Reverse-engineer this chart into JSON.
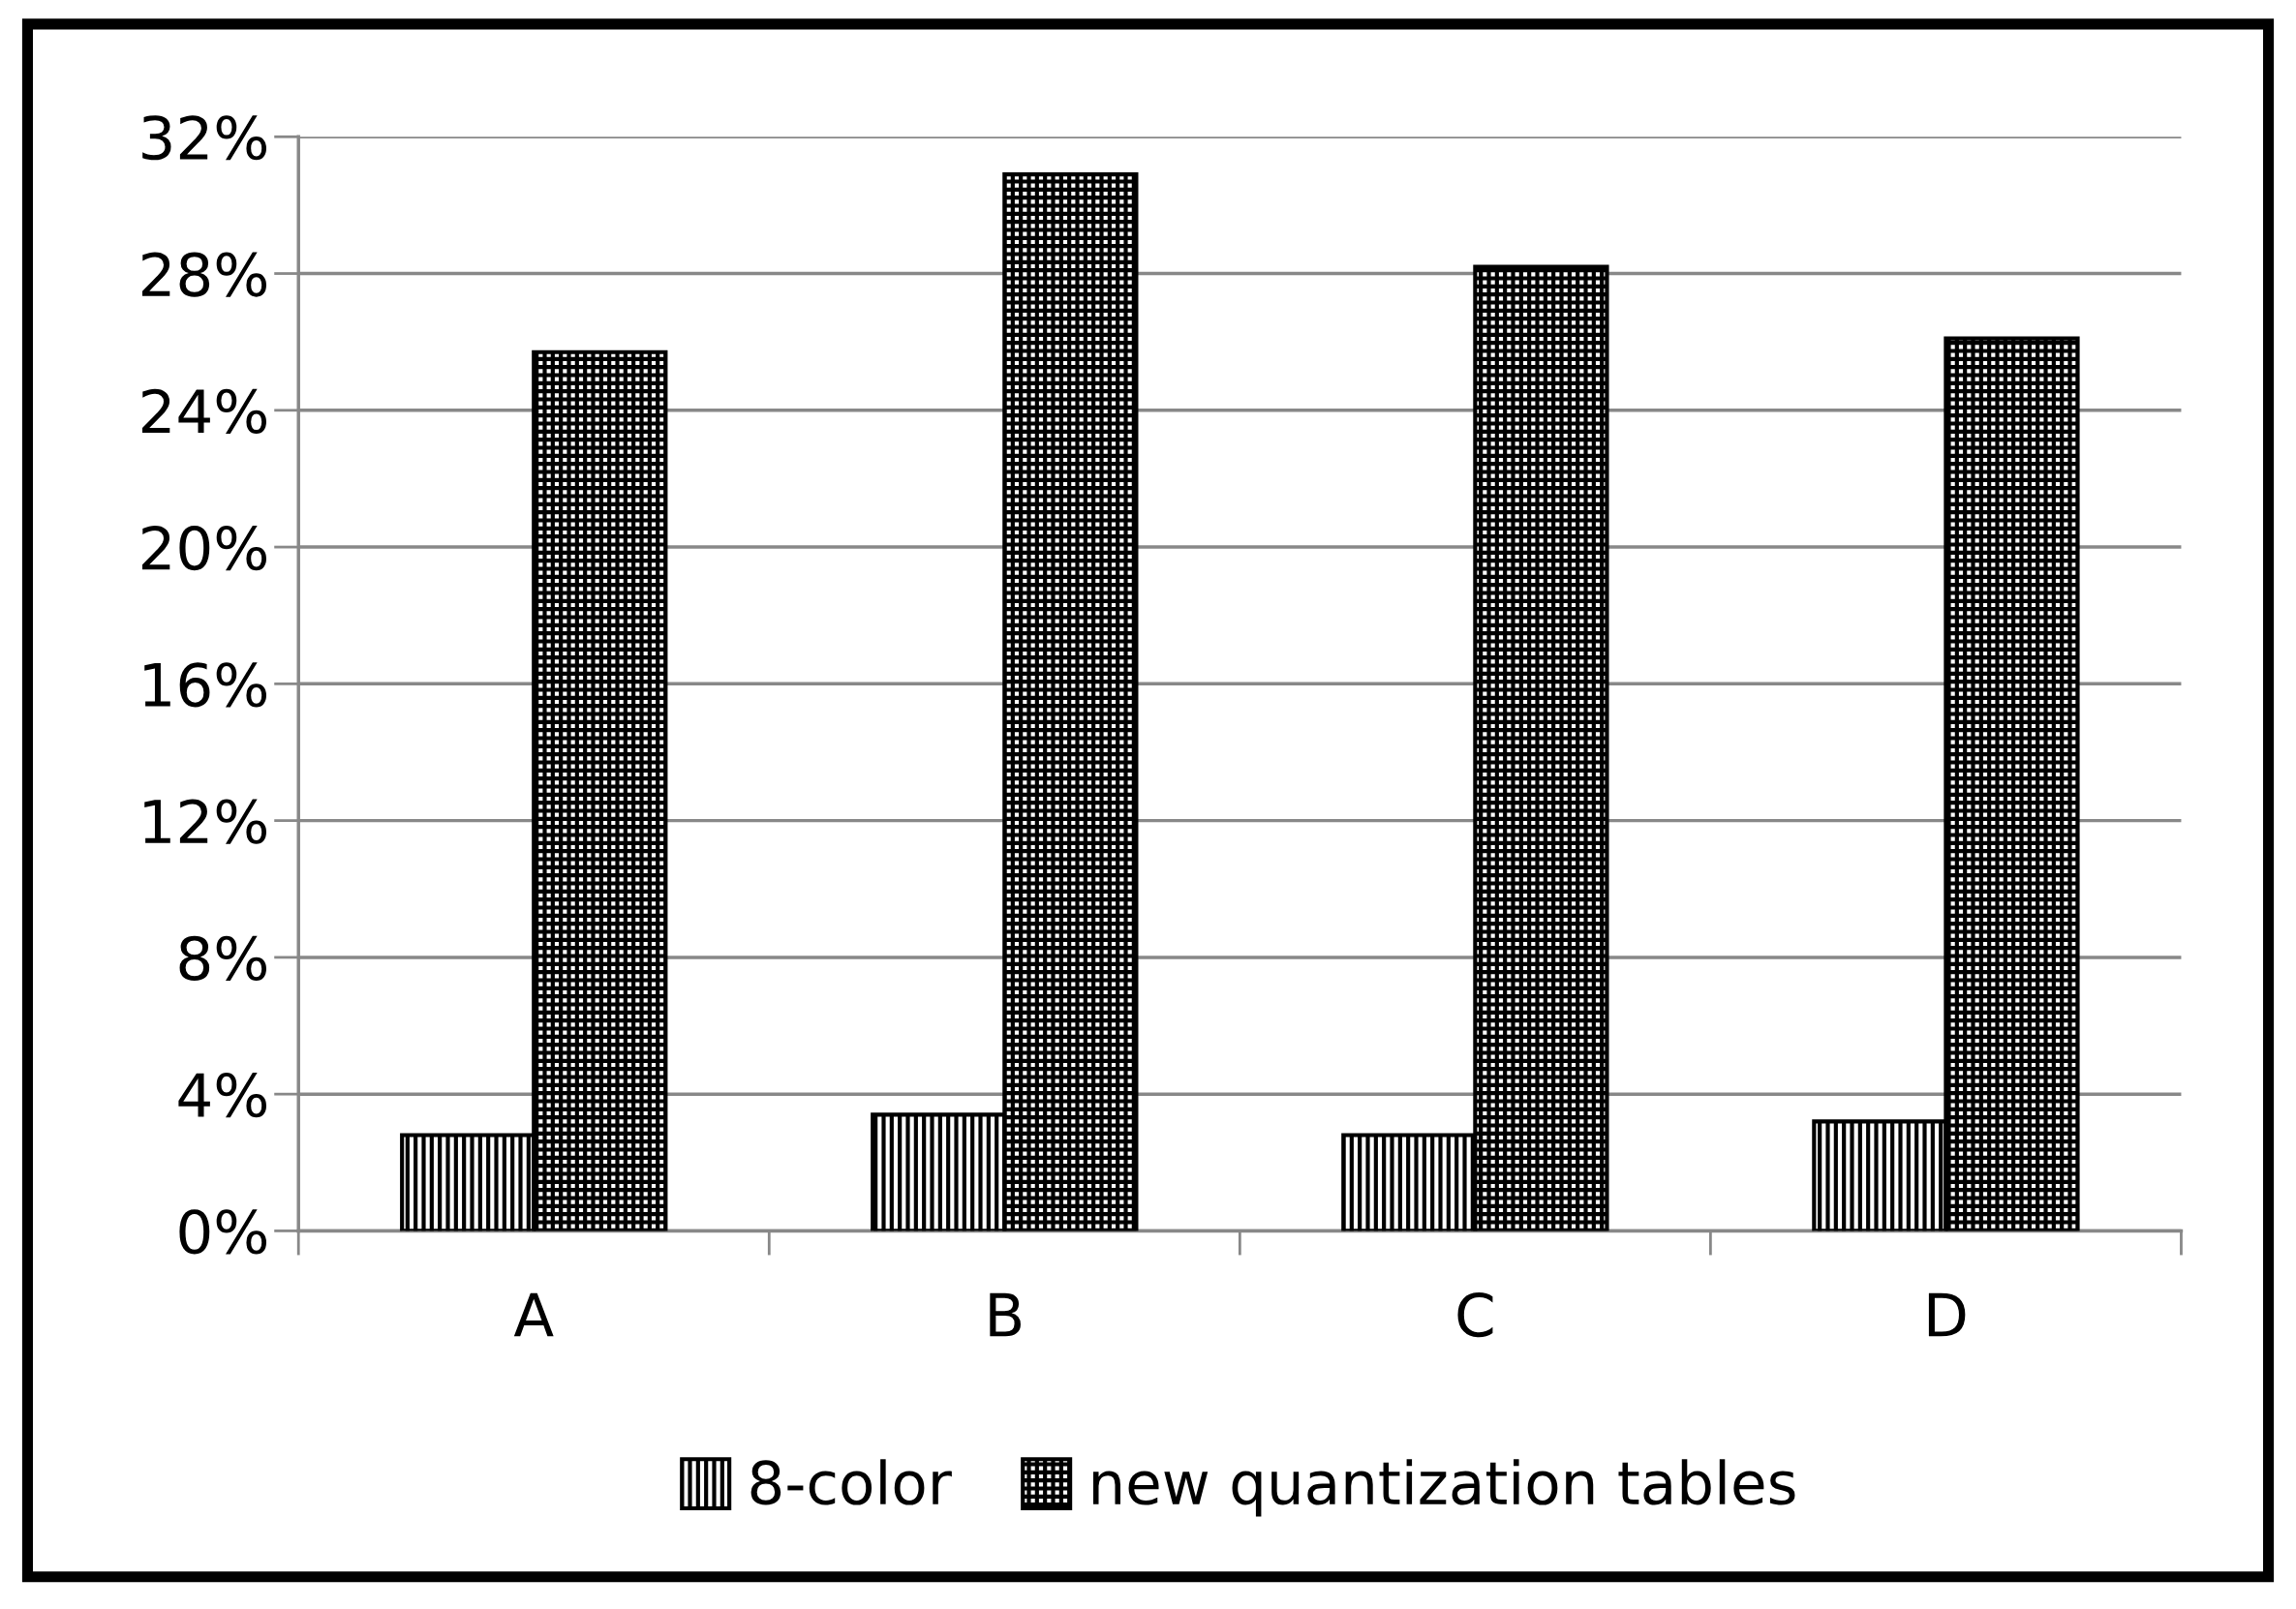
{
  "chart_data": {
    "type": "bar",
    "categories": [
      "A",
      "B",
      "C",
      "D"
    ],
    "series": [
      {
        "name": "8-color",
        "color": "#000000",
        "values": [
          2.8,
          3.4,
          2.8,
          3.2
        ]
      },
      {
        "name": "new quantization tables",
        "color": "#000000",
        "values": [
          25.7,
          30.9,
          28.2,
          26.1
        ]
      }
    ],
    "ylim": [
      0,
      32
    ],
    "yticks": [
      {
        "value": 0,
        "label": "0%"
      },
      {
        "value": 4,
        "label": "4%"
      },
      {
        "value": 8,
        "label": "8%"
      },
      {
        "value": 12,
        "label": "12%"
      },
      {
        "value": 16,
        "label": "16%"
      },
      {
        "value": 20,
        "label": "20%"
      },
      {
        "value": 24,
        "label": "24%"
      },
      {
        "value": 28,
        "label": "28%"
      },
      {
        "value": 32,
        "label": "32%"
      }
    ],
    "grid": "y",
    "legend": "bottom"
  }
}
